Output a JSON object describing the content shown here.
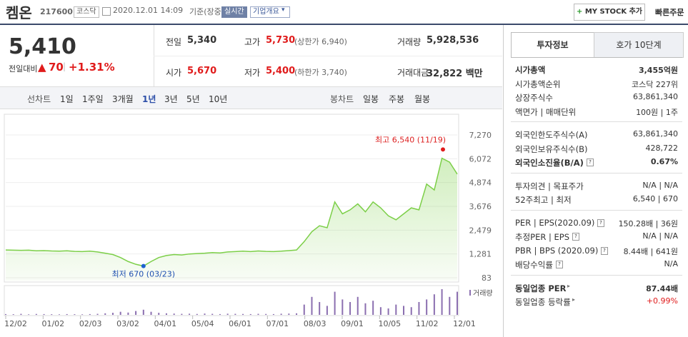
{
  "header": {
    "name": "켐온",
    "code": "217600",
    "market": "코스닥",
    "datetime": "2020.12.01 14:09",
    "basis": "기준(장중)",
    "realtime": "실시간",
    "overview": "기업개요",
    "mystock": "MY STOCK 추가",
    "quick_order": "빠른주문"
  },
  "quote": {
    "price": "5,410",
    "change_label": "전일대비",
    "change": "70",
    "change_rate": "+1.31%"
  },
  "summary": [
    [
      {
        "label": "전일",
        "value": "5,340"
      },
      {
        "label": "고가",
        "value": "5,730",
        "note": "(상한가 6,940)"
      },
      {
        "label": "거래량",
        "value": "5,928,536"
      }
    ],
    [
      {
        "label": "시가",
        "value": "5,670"
      },
      {
        "label": "저가",
        "value": "5,400",
        "note": "(하한가 3,740)"
      },
      {
        "label": "거래대금",
        "value": "32,822 백만"
      }
    ]
  ],
  "tabs": {
    "line_label": "선차트",
    "line": [
      "1일",
      "1주일",
      "3개월",
      "1년",
      "3년",
      "5년",
      "10년"
    ],
    "selected_index": 3,
    "candle_label": "봉차트",
    "candle": [
      "일봉",
      "주봉",
      "월봉"
    ]
  },
  "chart": {
    "type": "line",
    "color": "#7ccf48",
    "values": [
      1480,
      1470,
      1460,
      1470,
      1440,
      1450,
      1430,
      1420,
      1440,
      1410,
      1400,
      1420,
      1380,
      1320,
      1250,
      1100,
      900,
      760,
      670,
      900,
      1100,
      1200,
      1250,
      1230,
      1280,
      1300,
      1320,
      1350,
      1330,
      1380,
      1400,
      1420,
      1400,
      1430,
      1410,
      1400,
      1420,
      1450,
      1480,
      1900,
      2400,
      2700,
      2600,
      3900,
      3300,
      3500,
      3800,
      3400,
      3900,
      3600,
      3200,
      3000,
      3300,
      3600,
      3500,
      4800,
      4500,
      6100,
      5900,
      5300
    ],
    "ylim": [
      83,
      7270
    ],
    "yticks": [
      83,
      {
        "value": 1281,
        "label": "1,281"
      },
      {
        "value": 2479,
        "label": "2,479"
      },
      {
        "value": 3676,
        "label": "3,676"
      },
      {
        "value": 4874,
        "label": "4,874"
      },
      {
        "value": 6072,
        "label": "6,072"
      },
      {
        "value": 7270,
        "label": "7,270"
      }
    ],
    "xticks": [
      "12/02",
      "01/02",
      "02/03",
      "03/02",
      "04/01",
      "05/04",
      "06/01",
      "07/01",
      "08/03",
      "09/01",
      "10/05",
      "11/02",
      "12/01"
    ],
    "high": 6540,
    "high_label": "최고 6,540 (11/19)",
    "low": 670,
    "low_label": "최저 670 (03/23)",
    "volume_label": "거래량",
    "volume": [
      30,
      25,
      40,
      20,
      35,
      30,
      25,
      20,
      30,
      25,
      20,
      30,
      40,
      60,
      80,
      120,
      90,
      150,
      200,
      120,
      80,
      60,
      50,
      40,
      45,
      35,
      50,
      40,
      30,
      45,
      40,
      35,
      30,
      40,
      35,
      30,
      45,
      50,
      60,
      400,
      700,
      500,
      350,
      900,
      600,
      500,
      700,
      450,
      550,
      300,
      250,
      400,
      350,
      300,
      500,
      600,
      800,
      1000,
      700,
      900
    ]
  },
  "info": {
    "tabs": [
      "투자정보",
      "호가 10단계"
    ],
    "groups": [
      [
        {
          "label": "시가총액",
          "value": "3,455억원",
          "bold": true
        },
        {
          "label": "시가총액순위",
          "value": "코스닥 227위"
        },
        {
          "label": "상장주식수",
          "value": "63,861,340"
        },
        {
          "label": "액면가 | 매매단위",
          "value": "100원 | 1주"
        }
      ],
      [
        {
          "label": "외국인한도주식수(A)",
          "value": "63,861,340"
        },
        {
          "label": "외국인보유주식수(B)",
          "value": "428,722"
        },
        {
          "label": "외국인소진율(B/A)",
          "value": "0.67%",
          "bold": true,
          "help": true
        }
      ],
      [
        {
          "label": "투자의견 | 목표주가",
          "value": "N/A | N/A"
        },
        {
          "label": "52주최고 | 최저",
          "value": "6,540 | 670"
        }
      ],
      [
        {
          "label": "PER | EPS(2020.09)",
          "value": "150.28배 | 36원",
          "help": true
        },
        {
          "label": "추정PER | EPS",
          "value": "N/A | N/A",
          "help": true
        },
        {
          "label": "PBR | BPS (2020.09)",
          "value": "8.44배 | 641원",
          "help": true
        },
        {
          "label": "배당수익률",
          "value": "N/A",
          "help": true
        }
      ],
      [
        {
          "label": "동일업종 PER",
          "value": "87.44배",
          "bold": true,
          "arrow": true
        },
        {
          "label": "동일업종 등락률",
          "value": "+0.99%",
          "red": true,
          "arrow": true
        }
      ]
    ]
  }
}
